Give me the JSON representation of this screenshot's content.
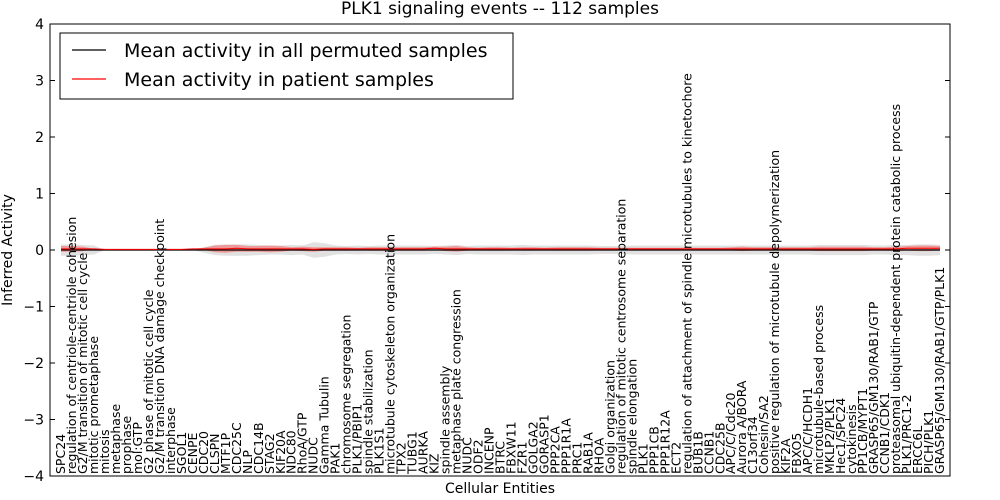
{
  "chart_data": {
    "type": "line",
    "title": "PLK1 signaling events -- 112 samples",
    "xlabel": "Cellular Entities",
    "ylabel": "Inferred Activity",
    "ylim": [
      -4,
      4
    ],
    "yticks": [
      -4,
      -3,
      -2,
      -1,
      0,
      1,
      2,
      3,
      4
    ],
    "ytick_labels": [
      "−4",
      "−3",
      "−2",
      "−1",
      "0",
      "1",
      "2",
      "3",
      "4"
    ],
    "legend": {
      "placement": "top-left",
      "entries": [
        {
          "label": "Mean activity in all permuted samples",
          "color": "#000000"
        },
        {
          "label": "Mean activity in patient samples",
          "color": "#ff0000"
        }
      ]
    },
    "categories": [
      "SPC24",
      "regulation of centriole-centriole cohesion",
      "G2/M transition of mitotic cell cycle",
      "mitotic prometaphase",
      "mitosis",
      "metaphase",
      "prophase",
      "mol:GTP",
      "G2 phase of mitotic cell cycle",
      "G2/M transition DNA damage checkpoint",
      "interphase",
      "SGOL1",
      "CENPE",
      "CDC20",
      "CLSPN",
      "MTF1P",
      "CDC25C",
      "NLP",
      "CDC14B",
      "STAG2",
      "KIF20A",
      "NDC80",
      "RhoA/GTP",
      "NUDC",
      "Gamma Tubulin",
      "PAK1",
      "chromosome segregation",
      "PLK1/PBIP1",
      "spindle stabilization",
      "PLK1S1",
      "microtubule cytoskeleton organization",
      "TPX2",
      "TUBG1",
      "AURKA",
      "KIZ",
      "spindle assembly",
      "metaphase plate congression",
      "NUDC",
      "ODF2",
      "INCENP",
      "BTRC",
      "FBXW11",
      "FZR1",
      "GOLGA2",
      "GORASP1",
      "PPP2CA",
      "PPP1R1A",
      "PRC1",
      "RAB1A",
      "RHOA",
      "Golgi organization",
      "regulation of mitotic centrosome separation",
      "spindle elongation",
      "PLK1",
      "PPP1CB",
      "PPP1R12A",
      "ECT2",
      "regulation of attachment of spindle microtubules to kinetochore",
      "BUB1B",
      "CCNB1",
      "CDC25B",
      "APC/C/Cdc20",
      "Aurora A/BORA",
      "C13orf34",
      "Cohesin/SA2",
      "positive regulation of microtubule depolymerization",
      "KIF2A",
      "FBXO5",
      "APC/C/HCDH1",
      "microtubule-based process",
      "MKLP2/PLK1",
      "Hec1/SPC24",
      "cytokinesis",
      "PP1CB/MYPT1",
      "GRASP65/GM130/RAB1/GTP",
      "CCNB1/CDK1",
      "proteasomal ubiquitin-dependent protein catabolic process",
      "PLK1/PRC1-2",
      "ERCC6L",
      "PICH/PLK1",
      "GRASP65/GM130/RAB1/GTP/PLK1"
    ],
    "series": [
      {
        "name": "Mean activity in all permuted samples",
        "color": "#000000",
        "values": [
          0.0,
          0.0,
          0.0,
          0.0,
          0.0,
          0.0,
          0.0,
          0.0,
          0.0,
          0.0,
          0.0,
          0.0,
          0.0,
          0.0,
          0.0,
          0.0,
          0.0,
          0.0,
          0.0,
          0.0,
          0.0,
          0.0,
          0.0,
          0.0,
          0.0,
          0.0,
          0.0,
          0.0,
          0.0,
          0.0,
          0.0,
          0.0,
          0.0,
          0.0,
          0.0,
          0.0,
          0.0,
          0.0,
          0.0,
          0.0,
          0.0,
          0.0,
          0.0,
          0.0,
          0.0,
          0.0,
          0.0,
          0.0,
          0.0,
          0.0,
          0.0,
          0.0,
          0.0,
          0.0,
          0.0,
          0.0,
          0.0,
          0.0,
          0.0,
          0.0,
          0.0,
          0.0,
          0.0,
          0.0,
          0.0,
          0.0,
          0.0,
          0.0,
          0.0,
          0.0,
          0.0,
          0.0,
          0.0,
          0.0,
          0.0,
          0.0,
          0.0,
          0.0,
          0.0,
          0.0,
          0.0
        ]
      },
      {
        "name": "Mean activity in patient samples",
        "color": "#ff0000",
        "values": [
          0.02,
          0.02,
          0.02,
          0.02,
          0.01,
          0.01,
          0.01,
          0.01,
          0.01,
          0.01,
          0.01,
          0.01,
          0.02,
          0.02,
          0.02,
          0.02,
          0.03,
          0.02,
          0.02,
          0.02,
          0.02,
          0.02,
          0.02,
          0.01,
          0.02,
          0.02,
          0.02,
          0.02,
          0.02,
          0.02,
          0.02,
          0.02,
          0.02,
          0.02,
          0.03,
          0.02,
          0.02,
          0.02,
          0.02,
          0.02,
          0.02,
          0.02,
          0.02,
          0.02,
          0.02,
          0.02,
          0.02,
          0.02,
          0.02,
          0.02,
          0.02,
          0.02,
          0.02,
          0.02,
          0.02,
          0.02,
          0.02,
          0.02,
          0.02,
          0.02,
          0.02,
          0.02,
          0.02,
          0.02,
          0.02,
          0.02,
          0.02,
          0.02,
          0.02,
          0.02,
          0.02,
          0.02,
          0.02,
          0.02,
          0.02,
          0.02,
          0.02,
          0.03,
          0.03,
          0.03,
          0.03
        ]
      }
    ],
    "patient_band_halfwidth": [
      0.05,
      0.05,
      0.04,
      0.0,
      0.0,
      0.0,
      0.0,
      0.0,
      0.0,
      0.0,
      0.0,
      0.0,
      0.0,
      0.02,
      0.06,
      0.07,
      0.06,
      0.05,
      0.05,
      0.06,
      0.05,
      0.03,
      0.04,
      0.04,
      0.03,
      0.03,
      0.03,
      0.02,
      0.03,
      0.03,
      0.03,
      0.03,
      0.03,
      0.03,
      0.03,
      0.04,
      0.05,
      0.03,
      0.02,
      0.03,
      0.03,
      0.02,
      0.03,
      0.03,
      0.02,
      0.03,
      0.03,
      0.03,
      0.03,
      0.02,
      0.02,
      0.02,
      0.02,
      0.02,
      0.02,
      0.02,
      0.02,
      0.02,
      0.02,
      0.02,
      0.02,
      0.03,
      0.04,
      0.03,
      0.03,
      0.03,
      0.03,
      0.03,
      0.03,
      0.04,
      0.04,
      0.04,
      0.04,
      0.04,
      0.03,
      0.03,
      0.04,
      0.04,
      0.05,
      0.05,
      0.04
    ],
    "permuted_band_halfwidth": [
      0.1,
      0.1,
      0.09,
      0.08,
      0.0,
      0.0,
      0.0,
      0.0,
      0.0,
      0.0,
      0.0,
      0.0,
      0.0,
      0.05,
      0.09,
      0.1,
      0.1,
      0.1,
      0.09,
      0.08,
      0.08,
      0.09,
      0.08,
      0.14,
      0.12,
      0.08,
      0.07,
      0.08,
      0.07,
      0.08,
      0.08,
      0.08,
      0.08,
      0.08,
      0.07,
      0.08,
      0.09,
      0.07,
      0.08,
      0.08,
      0.08,
      0.08,
      0.09,
      0.08,
      0.08,
      0.08,
      0.08,
      0.08,
      0.08,
      0.07,
      0.07,
      0.07,
      0.08,
      0.08,
      0.08,
      0.08,
      0.08,
      0.08,
      0.08,
      0.08,
      0.08,
      0.08,
      0.08,
      0.08,
      0.08,
      0.08,
      0.08,
      0.08,
      0.08,
      0.09,
      0.09,
      0.09,
      0.09,
      0.09,
      0.08,
      0.08,
      0.09,
      0.09,
      0.1,
      0.1,
      0.09
    ]
  }
}
